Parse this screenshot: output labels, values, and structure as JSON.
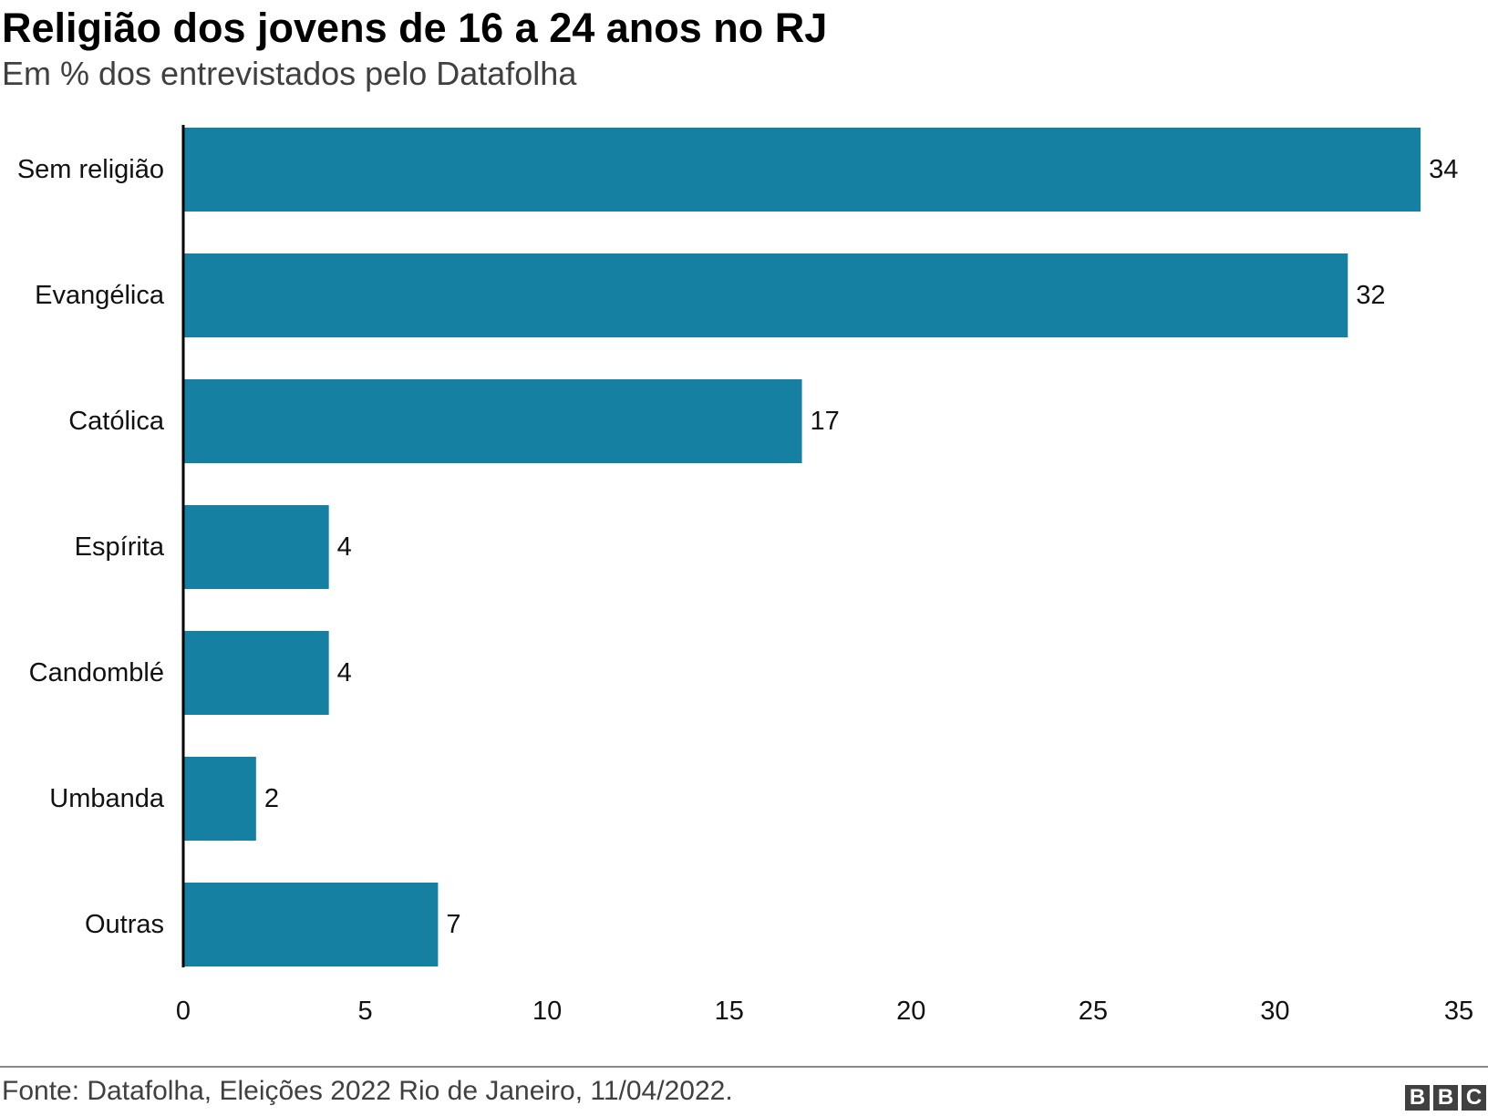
{
  "header": {
    "title": "Religião dos jovens de 16 a 24 anos no RJ",
    "subtitle": "Em % dos entrevistados pelo Datafolha"
  },
  "footer": {
    "source": "Fonte: Datafolha, Eleições 2022 Rio de Janeiro, 11/04/2022.",
    "logo_letters": [
      "B",
      "B",
      "C"
    ]
  },
  "colors": {
    "bar": "#1580A2",
    "axis": "#000000",
    "text": "#222222"
  },
  "chart_data": {
    "type": "bar",
    "orientation": "horizontal",
    "title": "Religião dos jovens de 16 a 24 anos no RJ",
    "subtitle": "Em % dos entrevistados pelo Datafolha",
    "categories": [
      "Sem religião",
      "Evangélica",
      "Católica",
      "Espírita",
      "Candomblé",
      "Umbanda",
      "Outras"
    ],
    "values": [
      34,
      32,
      17,
      4,
      4,
      2,
      7
    ],
    "xlim": [
      0,
      35
    ],
    "xticks": [
      0,
      5,
      10,
      15,
      20,
      25,
      30,
      35
    ],
    "xlabel": "",
    "ylabel": "",
    "grid": false,
    "data_labels": true
  }
}
